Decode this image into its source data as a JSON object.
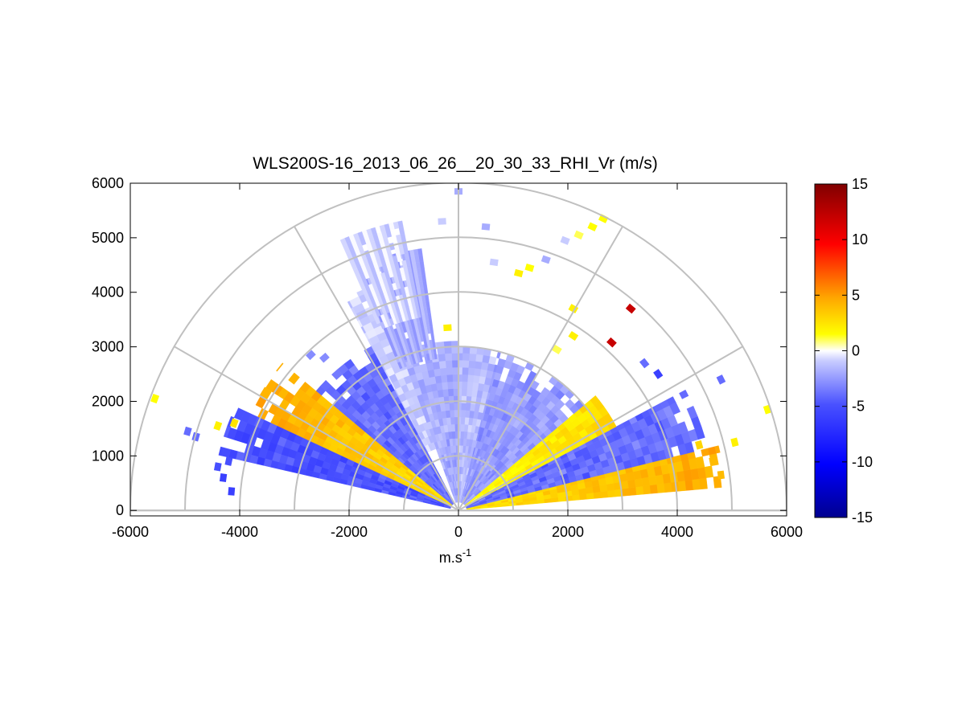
{
  "chart_data": {
    "type": "heatmap",
    "title": "WLS200S-16_2013_06_26__20_30_33_RHI_Vr (m/s)",
    "xlabel": "m.s",
    "xlabel_sup": "-1",
    "ylabel": "",
    "xlim": [
      -6000,
      6000
    ],
    "ylim": [
      -100,
      6000
    ],
    "xticks": [
      "-6000",
      "-4000",
      "-2000",
      "0",
      "2000",
      "4000",
      "6000"
    ],
    "yticks": [
      "0",
      "1000",
      "2000",
      "3000",
      "4000",
      "5000",
      "6000"
    ],
    "polar_grid": {
      "ranges": [
        1000,
        2000,
        3000,
        4000,
        5000,
        6000
      ],
      "angles_deg": [
        0,
        30,
        60,
        90,
        120,
        150,
        180
      ]
    },
    "colorbar": {
      "range": [
        -15,
        15
      ],
      "ticks": [
        "15",
        "10",
        "5",
        "0",
        "-5",
        "-10",
        "-15"
      ],
      "units": "m/s"
    },
    "sectors": [
      {
        "az_from": 5,
        "az_to": 14,
        "r_min": 150,
        "r_max": 4900,
        "vr": 2.5
      },
      {
        "az_from": 14,
        "az_to": 28,
        "r_min": 150,
        "r_max": 4700,
        "vr": -4
      },
      {
        "az_from": 28,
        "az_to": 40,
        "r_min": 150,
        "r_max": 3400,
        "vr": 1.5
      },
      {
        "az_from": 40,
        "az_to": 76,
        "r_min": 150,
        "r_max": 3000,
        "vr": -2.5
      },
      {
        "az_from": 76,
        "az_to": 90,
        "r_min": 150,
        "r_max": 3000,
        "vr": -1.5
      },
      {
        "az_from": 90,
        "az_to": 110,
        "r_min": 150,
        "r_max": 3100,
        "vr": -2
      },
      {
        "az_from": 110,
        "az_to": 118,
        "r_min": 1200,
        "r_max": 4400,
        "vr": -1
      },
      {
        "az_from": 118,
        "az_to": 140,
        "r_min": 150,
        "r_max": 3400,
        "vr": -4
      },
      {
        "az_from": 140,
        "az_to": 155,
        "r_min": 150,
        "r_max": 4200,
        "vr": 2.5
      },
      {
        "az_from": 155,
        "az_to": 167,
        "r_min": 150,
        "r_max": 4500,
        "vr": -5
      }
    ],
    "bands": [
      {
        "az_from": 98,
        "az_to": 112,
        "r_min": 2800,
        "r_max": 4800,
        "vr": -2
      },
      {
        "az_from": 101,
        "az_to": 113,
        "r_min": 3600,
        "r_max": 5400,
        "vr": -0.8
      }
    ],
    "scatter_cells": [
      {
        "x": 3150,
        "y": 3700,
        "vr": 12
      },
      {
        "x": 2800,
        "y": 3080,
        "vr": 12
      },
      {
        "x": -5550,
        "y": 2050,
        "vr": 1.5
      },
      {
        "x": 5650,
        "y": 1850,
        "vr": 1.5
      },
      {
        "x": 3400,
        "y": 2700,
        "vr": -4
      },
      {
        "x": 3650,
        "y": 2500,
        "vr": -6
      },
      {
        "x": 4800,
        "y": 2400,
        "vr": -4
      },
      {
        "x": 2650,
        "y": 5350,
        "vr": 1.5
      },
      {
        "x": 2450,
        "y": 5200,
        "vr": 1.5
      },
      {
        "x": 2200,
        "y": 5050,
        "vr": 1
      },
      {
        "x": 1950,
        "y": 4950,
        "vr": -1
      },
      {
        "x": 1600,
        "y": 4600,
        "vr": -2
      },
      {
        "x": 1300,
        "y": 4450,
        "vr": 1.5
      },
      {
        "x": 1100,
        "y": 4350,
        "vr": 2
      },
      {
        "x": 650,
        "y": 4550,
        "vr": -1
      },
      {
        "x": 500,
        "y": 5200,
        "vr": -2
      },
      {
        "x": 0,
        "y": 5850,
        "vr": -2
      },
      {
        "x": -300,
        "y": 5300,
        "vr": -1
      },
      {
        "x": 2100,
        "y": 3700,
        "vr": 2
      },
      {
        "x": 2100,
        "y": 3200,
        "vr": 2
      },
      {
        "x": 1800,
        "y": 2950,
        "vr": 1
      },
      {
        "x": -2700,
        "y": 2850,
        "vr": -3
      },
      {
        "x": -2450,
        "y": 2800,
        "vr": -3
      },
      {
        "x": -4950,
        "y": 1450,
        "vr": -4
      },
      {
        "x": -4800,
        "y": 1350,
        "vr": -4
      },
      {
        "x": -4400,
        "y": 1550,
        "vr": 2
      },
      {
        "x": -4100,
        "y": 1600,
        "vr": 2.5
      },
      {
        "x": -4200,
        "y": 900,
        "vr": -5
      },
      {
        "x": -4400,
        "y": 800,
        "vr": -5
      },
      {
        "x": -4300,
        "y": 600,
        "vr": -6
      },
      {
        "x": -4150,
        "y": 350,
        "vr": -6
      },
      {
        "x": 4400,
        "y": 1200,
        "vr": 3
      },
      {
        "x": 4650,
        "y": 900,
        "vr": 4
      },
      {
        "x": 5050,
        "y": 1250,
        "vr": 2
      },
      {
        "x": 4800,
        "y": 650,
        "vr": 4
      },
      {
        "x": -200,
        "y": 3350,
        "vr": 2
      }
    ]
  }
}
